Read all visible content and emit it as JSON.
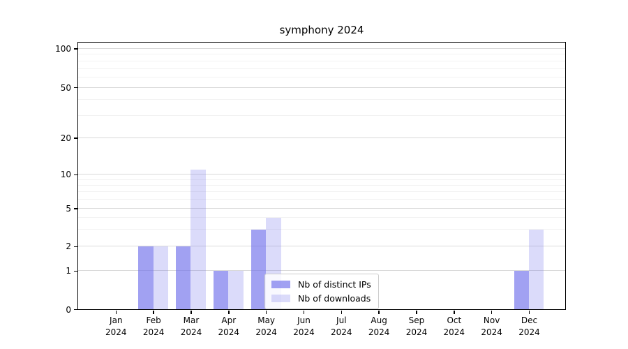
{
  "chart_data": {
    "type": "bar",
    "title": "symphony 2024",
    "categories": [
      "Jan",
      "Feb",
      "Mar",
      "Apr",
      "May",
      "Jun",
      "Jul",
      "Aug",
      "Sep",
      "Oct",
      "Nov",
      "Dec"
    ],
    "category_year": "2024",
    "series": [
      {
        "name": "Nb of distinct IPs",
        "color": "rgba(110,110,235,0.65)",
        "values": [
          0,
          2,
          2,
          1,
          3,
          0,
          0,
          0,
          0,
          0,
          0,
          1
        ]
      },
      {
        "name": "Nb of downloads",
        "color": "rgba(110,110,235,0.25)",
        "values": [
          0,
          2,
          11,
          1,
          4,
          0,
          0,
          0,
          0,
          0,
          0,
          3
        ]
      }
    ],
    "y_axis": {
      "scale": "symlog",
      "ticks": [
        0,
        1,
        2,
        5,
        10,
        20,
        50,
        100
      ],
      "minor_gridlines": [
        3,
        4,
        6,
        7,
        8,
        9,
        30,
        40,
        60,
        70,
        80,
        90
      ]
    },
    "x_axis": {
      "label_line1": "month",
      "label_line2": "2024"
    },
    "legend": {
      "entries": [
        "Nb of distinct IPs",
        "Nb of downloads"
      ],
      "position": "lower center"
    },
    "grid": true,
    "colors": {
      "bar_base": "#6e6eeb",
      "major_grid": "#d9d9d9",
      "minor_grid": "#f2f2f2",
      "axis": "#000000",
      "background": "#ffffff"
    }
  }
}
